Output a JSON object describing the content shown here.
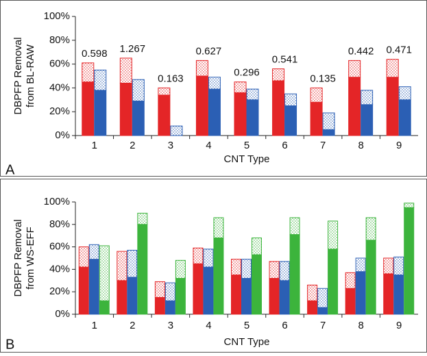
{
  "chart_data": [
    {
      "type": "bar",
      "stacked": true,
      "panel_label": "A",
      "x_label": "CNT Type",
      "y_label": [
        "DBPFP Removal",
        "from BL-RAW"
      ],
      "categories": [
        "1",
        "2",
        "3",
        "4",
        "5",
        "6",
        "7",
        "8",
        "9"
      ],
      "ylim": [
        0,
        100
      ],
      "yticks": [
        {
          "value": 0,
          "label": "0%"
        },
        {
          "value": 20,
          "label": "20%"
        },
        {
          "value": 40,
          "label": "40%"
        },
        {
          "value": 60,
          "label": "60%"
        },
        {
          "value": 80,
          "label": "80%"
        },
        {
          "value": 100,
          "label": "100%"
        }
      ],
      "annotations": [
        0.598,
        1.267,
        0.163,
        0.627,
        0.296,
        0.541,
        0.135,
        0.442,
        0.471
      ],
      "series": [
        {
          "group": 0,
          "pattern": "solid",
          "color": "#e42527",
          "values": [
            45,
            44,
            34,
            50,
            36,
            46,
            28,
            49,
            49
          ]
        },
        {
          "group": 0,
          "pattern": "dotted",
          "color": "#e42527",
          "values": [
            16,
            21,
            6,
            13,
            9,
            10,
            12,
            14,
            15
          ]
        },
        {
          "group": 1,
          "pattern": "solid",
          "color": "#2b5fb4",
          "values": [
            38,
            29,
            0,
            39,
            30,
            25,
            5,
            26,
            30
          ]
        },
        {
          "group": 1,
          "pattern": "dotted",
          "color": "#2b5fb4",
          "values": [
            17,
            18,
            8,
            10,
            9,
            10,
            14,
            12,
            11
          ]
        }
      ]
    },
    {
      "type": "bar",
      "stacked": true,
      "panel_label": "B",
      "x_label": "CNT Type",
      "y_label": [
        "DBPFP Removal",
        "from WS-EFF"
      ],
      "categories": [
        "1",
        "2",
        "3",
        "4",
        "5",
        "6",
        "7",
        "8",
        "9"
      ],
      "ylim": [
        0,
        100
      ],
      "yticks": [
        {
          "value": 0,
          "label": "0%"
        },
        {
          "value": 20,
          "label": "20%"
        },
        {
          "value": 40,
          "label": "40%"
        },
        {
          "value": 60,
          "label": "60%"
        },
        {
          "value": 80,
          "label": "80%"
        },
        {
          "value": 100,
          "label": "100%"
        }
      ],
      "series": [
        {
          "group": 0,
          "pattern": "solid",
          "color": "#e42527",
          "values": [
            42,
            30,
            15,
            45,
            35,
            32,
            12,
            23,
            36
          ]
        },
        {
          "group": 0,
          "pattern": "dotted",
          "color": "#e42527",
          "values": [
            18,
            26,
            14,
            14,
            14,
            15,
            14,
            14,
            14
          ]
        },
        {
          "group": 1,
          "pattern": "solid",
          "color": "#2b5fb4",
          "values": [
            49,
            33,
            12,
            42,
            32,
            30,
            6,
            38,
            35
          ]
        },
        {
          "group": 1,
          "pattern": "dotted",
          "color": "#2b5fb4",
          "values": [
            13,
            24,
            16,
            16,
            17,
            17,
            17,
            12,
            16
          ]
        },
        {
          "group": 2,
          "pattern": "solid",
          "color": "#3cb43c",
          "values": [
            12,
            80,
            32,
            68,
            53,
            71,
            58,
            66,
            95
          ]
        },
        {
          "group": 2,
          "pattern": "dotted",
          "color": "#3cb43c",
          "values": [
            49,
            10,
            16,
            18,
            15,
            15,
            25,
            20,
            4
          ]
        }
      ]
    }
  ]
}
